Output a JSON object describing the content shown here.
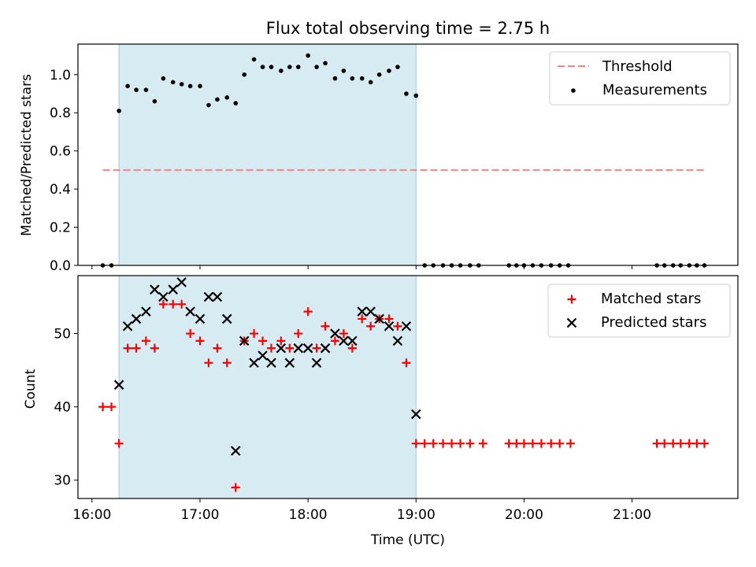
{
  "chart_data": [
    {
      "type": "scatter",
      "title": "Flux total observing time = 2.75 h",
      "xlabel": "",
      "ylabel": "Matched/Predicted stars",
      "xlim_hours": [
        15.87,
        21.98
      ],
      "ylim": [
        0,
        1.16
      ],
      "yticks": [
        0.0,
        0.2,
        0.4,
        0.6,
        0.8,
        1.0
      ],
      "ytick_labels": [
        "0.0",
        "0.2",
        "0.4",
        "0.6",
        "0.8",
        "1.0"
      ],
      "xticks_hours": [
        16,
        17,
        18,
        19,
        20,
        21
      ],
      "shaded_span_hours": [
        16.25,
        19.0
      ],
      "shade_color": "#add8e6",
      "legend": {
        "position": "top-right",
        "entries": [
          "Threshold",
          "Measurements"
        ]
      },
      "threshold": {
        "name": "Threshold",
        "value": 0.5,
        "x_range_hours": [
          16.1,
          21.67
        ],
        "color": "#ff8080"
      },
      "measurements": {
        "name": "Measurements",
        "color": "#000000",
        "x_hours": [
          16.1,
          16.18,
          16.25,
          16.33,
          16.41,
          16.5,
          16.58,
          16.66,
          16.75,
          16.83,
          16.91,
          17.0,
          17.08,
          17.16,
          17.25,
          17.33,
          17.41,
          17.5,
          17.58,
          17.66,
          17.75,
          17.83,
          17.91,
          18.0,
          18.08,
          18.16,
          18.25,
          18.33,
          18.41,
          18.5,
          18.58,
          18.66,
          18.75,
          18.83,
          18.91,
          19.0,
          19.08,
          19.16,
          19.25,
          19.33,
          19.41,
          19.5,
          19.58,
          19.86,
          19.93,
          20.0,
          20.08,
          20.16,
          20.25,
          20.33,
          20.41,
          21.23,
          21.3,
          21.38,
          21.45,
          21.53,
          21.6,
          21.67
        ],
        "y": [
          0,
          0,
          0.81,
          0.94,
          0.92,
          0.92,
          0.86,
          0.98,
          0.96,
          0.95,
          0.94,
          0.94,
          0.84,
          0.87,
          0.88,
          0.85,
          1.0,
          1.08,
          1.04,
          1.04,
          1.02,
          1.04,
          1.04,
          1.1,
          1.04,
          1.06,
          0.98,
          1.02,
          0.98,
          0.98,
          0.96,
          1.0,
          1.02,
          1.04,
          0.9,
          0.89,
          0,
          0,
          0,
          0,
          0,
          0,
          0,
          0,
          0,
          0,
          0,
          0,
          0,
          0,
          0,
          0,
          0,
          0,
          0,
          0,
          0,
          0
        ]
      }
    },
    {
      "type": "scatter",
      "title": "",
      "xlabel": "Time (UTC)",
      "ylabel": "Count",
      "xlim_hours": [
        15.87,
        21.98
      ],
      "ylim": [
        27.5,
        57.9
      ],
      "yticks": [
        30,
        40,
        50
      ],
      "ytick_labels": [
        "30",
        "40",
        "50"
      ],
      "xticks_hours": [
        16,
        17,
        18,
        19,
        20,
        21
      ],
      "xtick_labels": [
        "16:00",
        "17:00",
        "18:00",
        "19:00",
        "20:00",
        "21:00"
      ],
      "shaded_span_hours": [
        16.25,
        19.0
      ],
      "shade_color": "#add8e6",
      "legend": {
        "position": "top-right",
        "entries": [
          "Matched stars",
          "Predicted stars"
        ]
      },
      "matched": {
        "name": "Matched stars",
        "color": "#ff0000",
        "marker": "plus",
        "x_hours": [
          16.1,
          16.18,
          16.25,
          16.33,
          16.41,
          16.5,
          16.58,
          16.66,
          16.75,
          16.83,
          16.91,
          17.0,
          17.08,
          17.16,
          17.25,
          17.33,
          17.41,
          17.5,
          17.58,
          17.66,
          17.75,
          17.83,
          17.91,
          18.0,
          18.08,
          18.16,
          18.25,
          18.33,
          18.41,
          18.5,
          18.58,
          18.66,
          18.75,
          18.83,
          18.91,
          19.0,
          19.08,
          19.16,
          19.25,
          19.33,
          19.41,
          19.5,
          19.62,
          19.86,
          19.93,
          20.0,
          20.08,
          20.16,
          20.25,
          20.33,
          20.43,
          21.23,
          21.3,
          21.38,
          21.45,
          21.53,
          21.6,
          21.67
        ],
        "y": [
          40,
          40,
          35,
          48,
          48,
          49,
          48,
          54,
          54,
          54,
          50,
          49,
          46,
          48,
          46,
          29,
          49,
          50,
          49,
          48,
          49,
          48,
          50,
          53,
          48,
          51,
          49,
          50,
          48,
          52,
          51,
          52,
          52,
          51,
          46,
          35,
          35,
          35,
          35,
          35,
          35,
          35,
          35,
          35,
          35,
          35,
          35,
          35,
          35,
          35,
          35,
          35,
          35,
          35,
          35,
          35,
          35,
          35
        ]
      },
      "predicted": {
        "name": "Predicted stars",
        "color": "#000000",
        "marker": "x",
        "x_hours": [
          16.25,
          16.33,
          16.41,
          16.5,
          16.58,
          16.66,
          16.75,
          16.83,
          16.91,
          17.0,
          17.08,
          17.16,
          17.25,
          17.33,
          17.41,
          17.5,
          17.58,
          17.66,
          17.75,
          17.83,
          17.91,
          18.0,
          18.08,
          18.16,
          18.25,
          18.33,
          18.41,
          18.5,
          18.58,
          18.66,
          18.75,
          18.83,
          18.91,
          19.0
        ],
        "y": [
          43,
          51,
          52,
          53,
          56,
          55,
          56,
          57,
          53,
          52,
          55,
          55,
          52,
          34,
          49,
          46,
          47,
          46,
          48,
          46,
          48,
          48,
          46,
          48,
          50,
          49,
          49,
          53,
          53,
          52,
          51,
          49,
          51,
          39
        ]
      }
    }
  ]
}
